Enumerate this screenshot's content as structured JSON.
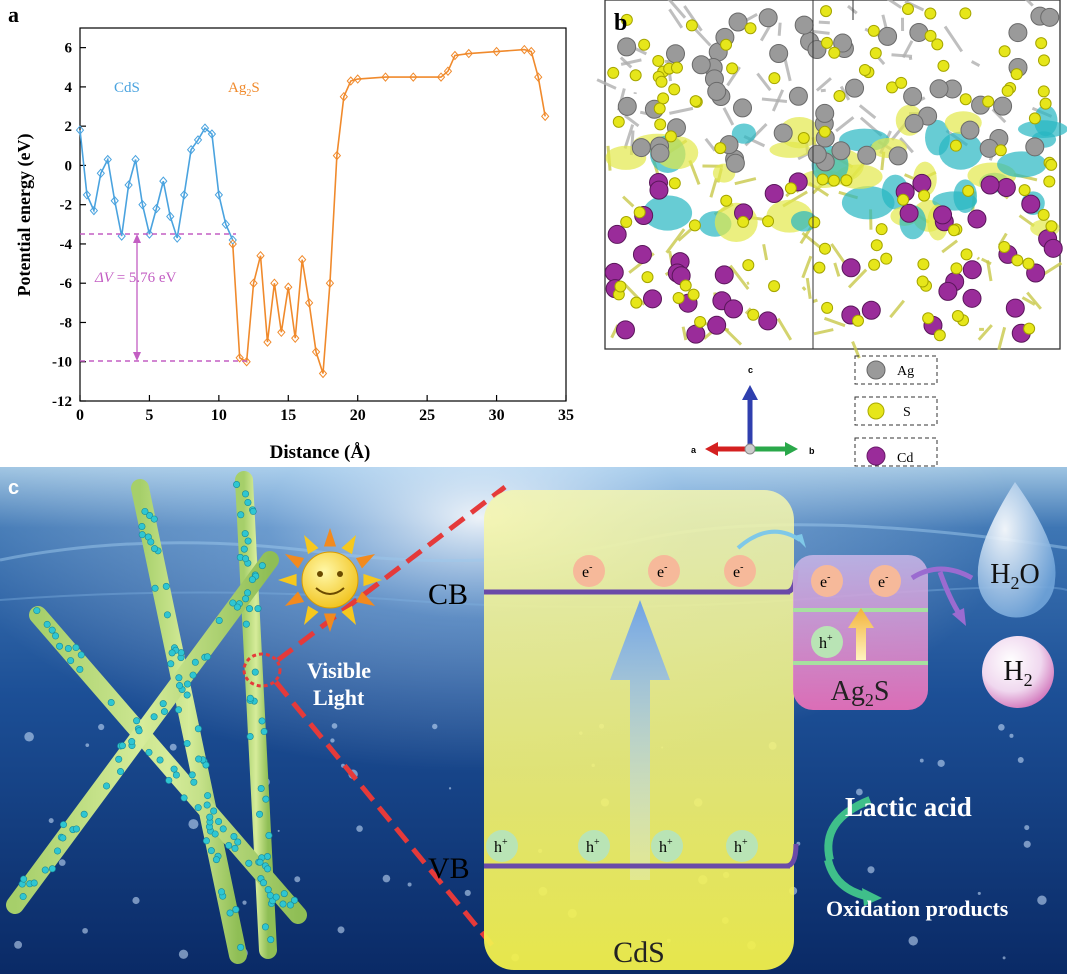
{
  "panel_a": {
    "label": "a",
    "ylabel": "Potential energy (eV)",
    "xlabel": "Distance (Å)",
    "cds_label": "CdS",
    "ag2s_label_main": "Ag",
    "ag2s_label_sub": "2",
    "ag2s_label_end": "S",
    "delta_label_italic": "ΔV",
    "delta_label_value": " = 5.76 eV",
    "x_ticks": [
      "0",
      "5",
      "10",
      "15",
      "20",
      "25",
      "30",
      "35"
    ],
    "y_ticks": [
      "6",
      "4",
      "2",
      "0",
      "-2",
      "-4",
      "-6",
      "-8",
      "-10",
      "-12"
    ],
    "colors": {
      "cds": "#4aa3df",
      "ag2s": "#f08a2c",
      "annot": "#c35ec3"
    }
  },
  "chart_data": {
    "type": "line",
    "xlabel": "Distance (Å)",
    "ylabel": "Potential energy (eV)",
    "xlim": [
      0,
      35
    ],
    "ylim": [
      -12,
      7
    ],
    "series": [
      {
        "name": "CdS",
        "x": [
          0.0,
          0.5,
          1.0,
          1.5,
          2.0,
          2.5,
          3.0,
          3.5,
          4.0,
          4.5,
          5.0,
          5.5,
          6.0,
          6.5,
          7.0,
          7.5,
          8.0,
          8.5,
          9.0,
          9.5,
          10.0,
          10.5,
          11.0
        ],
        "y": [
          1.8,
          -1.5,
          -2.3,
          -0.4,
          0.3,
          -1.8,
          -3.6,
          -1.0,
          0.3,
          -2.0,
          -3.5,
          -2.2,
          -0.8,
          -2.6,
          -3.7,
          -1.5,
          0.8,
          1.3,
          1.9,
          1.6,
          -1.5,
          -3.0,
          -3.8
        ]
      },
      {
        "name": "Ag2S",
        "x": [
          11.0,
          11.5,
          12.0,
          12.5,
          13.0,
          13.5,
          14.0,
          14.5,
          15.0,
          15.5,
          16.0,
          16.5,
          17.0,
          17.5,
          18.0,
          18.5,
          19.0,
          19.5,
          20.0,
          22.0,
          24.0,
          26.0,
          26.5,
          27.0,
          28.0,
          30.0,
          32.0,
          32.5,
          33.0,
          33.5
        ],
        "y": [
          -4.0,
          -9.8,
          -10.0,
          -6.0,
          -4.6,
          -9.0,
          -6.0,
          -8.5,
          -6.2,
          -8.8,
          -4.8,
          -7.0,
          -9.5,
          -10.6,
          -6.0,
          0.5,
          3.5,
          4.3,
          4.4,
          4.5,
          4.5,
          4.5,
          4.8,
          5.6,
          5.7,
          5.8,
          5.9,
          5.8,
          4.5,
          2.5
        ]
      }
    ],
    "annotations": [
      "CdS",
      "Ag2S",
      "ΔV = 5.76 eV"
    ],
    "reference_lines": [
      -3.7,
      -10.0
    ]
  },
  "panel_b": {
    "label": "b",
    "axis_c": "c",
    "axis_a": "a",
    "axis_b": "b",
    "legend": [
      {
        "label": "Ag",
        "color": "#9a9a9a"
      },
      {
        "label": "S",
        "color": "#e6e61a"
      },
      {
        "label": "Cd",
        "color": "#9a2c9a"
      }
    ]
  },
  "panel_c": {
    "label": "c",
    "visible_light_1": "Visible",
    "visible_light_2": "Light",
    "cb": "CB",
    "vb": "VB",
    "cds": "CdS",
    "ag2s_main": "Ag",
    "ag2s_sub": "2",
    "ag2s_end": "S",
    "electron": "e",
    "electron_sup": "-",
    "hole": "h",
    "hole_sup": "+",
    "h2o_main": "H",
    "h2o_sub": "2",
    "h2o_end": "O",
    "h2_main": "H",
    "h2_sub": "2",
    "lactic_acid": "Lactic acid",
    "oxidation_products": "Oxidation products"
  }
}
